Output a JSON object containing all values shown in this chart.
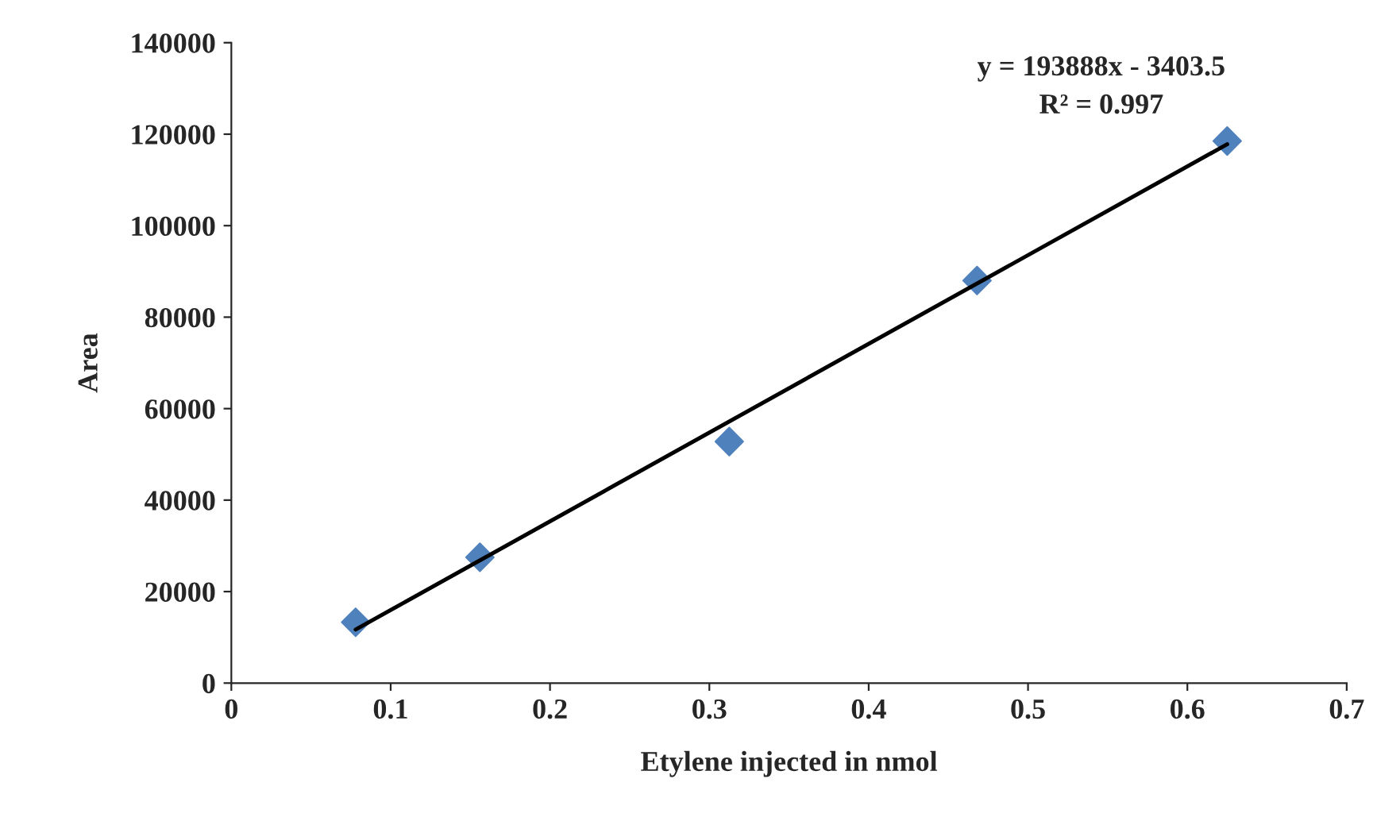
{
  "chart_data": {
    "type": "scatter",
    "xlabel": "Etylene injected in nmol",
    "ylabel": "Area",
    "series": [
      {
        "color": "#4f81bd",
        "marker": "diamond",
        "x": [
          0.078,
          0.156,
          0.3125,
          0.468,
          0.625
        ],
        "values": [
          13300,
          27500,
          52800,
          88000,
          118500
        ]
      },
      {
        "type": "line",
        "color": "#000000",
        "marker": "none",
        "line_style": "solid",
        "x": [
          0.078,
          0.625
        ],
        "values": [
          11700,
          117800
        ]
      }
    ],
    "xlim": [
      0,
      0.7
    ],
    "xticks": [
      0,
      0.1,
      0.2,
      0.3,
      0.4,
      0.5,
      0.6,
      0.7
    ],
    "ylim": [
      0,
      140000
    ],
    "yticks": [
      0,
      20000,
      40000,
      60000,
      80000,
      100000,
      120000,
      140000
    ],
    "grid": false,
    "legend": false,
    "annotations": [
      "y = 193888x - 3403.5\nR² = 0.997"
    ]
  }
}
